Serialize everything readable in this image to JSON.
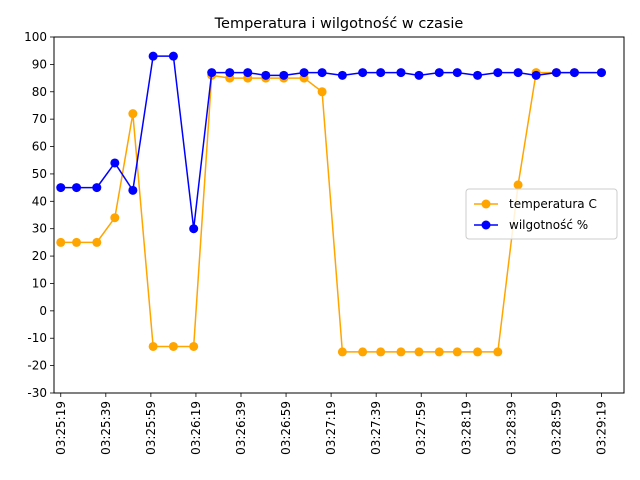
{
  "chart_data": {
    "type": "line",
    "title": "Temperatura i wilgotność w czasie",
    "xlabel": "",
    "ylabel": "",
    "ylim": [
      -30,
      100
    ],
    "yticks": [
      -30,
      -20,
      -10,
      0,
      10,
      20,
      30,
      40,
      50,
      60,
      70,
      80,
      90,
      100
    ],
    "xlim_seconds": [
      "03:25:16",
      "03:29:29"
    ],
    "xticks": [
      "03:25:19",
      "03:25:39",
      "03:25:59",
      "03:26:19",
      "03:26:39",
      "03:26:59",
      "03:27:19",
      "03:27:39",
      "03:27:59",
      "03:28:19",
      "03:28:39",
      "03:28:59",
      "03:29:19"
    ],
    "x_label_rotation": 90,
    "grid": false,
    "legend_position": "center-right",
    "series": [
      {
        "name": "temperatura C",
        "color": "#FFA500",
        "marker": "circle",
        "points": [
          [
            "03:25:19",
            25
          ],
          [
            "03:25:26",
            25
          ],
          [
            "03:25:35",
            25
          ],
          [
            "03:25:43",
            34
          ],
          [
            "03:25:51",
            72
          ],
          [
            "03:26:00",
            -13
          ],
          [
            "03:26:09",
            -13
          ],
          [
            "03:26:18",
            -13
          ],
          [
            "03:26:26",
            86
          ],
          [
            "03:26:34",
            85
          ],
          [
            "03:26:42",
            85
          ],
          [
            "03:26:50",
            85
          ],
          [
            "03:26:58",
            85
          ],
          [
            "03:27:07",
            85
          ],
          [
            "03:27:15",
            80
          ],
          [
            "03:27:24",
            -15
          ],
          [
            "03:27:33",
            -15
          ],
          [
            "03:27:41",
            -15
          ],
          [
            "03:27:50",
            -15
          ],
          [
            "03:27:58",
            -15
          ],
          [
            "03:28:07",
            -15
          ],
          [
            "03:28:15",
            -15
          ],
          [
            "03:28:24",
            -15
          ],
          [
            "03:28:33",
            -15
          ],
          [
            "03:28:42",
            46
          ],
          [
            "03:28:50",
            87
          ],
          [
            "03:28:59",
            87
          ],
          [
            "03:29:07",
            87
          ],
          [
            "03:29:19",
            87
          ]
        ]
      },
      {
        "name": "wilgotność %",
        "color": "#0000FF",
        "marker": "circle",
        "points": [
          [
            "03:25:19",
            45
          ],
          [
            "03:25:26",
            45
          ],
          [
            "03:25:35",
            45
          ],
          [
            "03:25:43",
            54
          ],
          [
            "03:25:51",
            44
          ],
          [
            "03:26:00",
            93
          ],
          [
            "03:26:09",
            93
          ],
          [
            "03:26:18",
            30
          ],
          [
            "03:26:26",
            87
          ],
          [
            "03:26:34",
            87
          ],
          [
            "03:26:42",
            87
          ],
          [
            "03:26:50",
            86
          ],
          [
            "03:26:58",
            86
          ],
          [
            "03:27:07",
            87
          ],
          [
            "03:27:15",
            87
          ],
          [
            "03:27:24",
            86
          ],
          [
            "03:27:33",
            87
          ],
          [
            "03:27:41",
            87
          ],
          [
            "03:27:50",
            87
          ],
          [
            "03:27:58",
            86
          ],
          [
            "03:28:07",
            87
          ],
          [
            "03:28:15",
            87
          ],
          [
            "03:28:24",
            86
          ],
          [
            "03:28:33",
            87
          ],
          [
            "03:28:42",
            87
          ],
          [
            "03:28:50",
            86
          ],
          [
            "03:28:59",
            87
          ],
          [
            "03:29:07",
            87
          ],
          [
            "03:29:19",
            87
          ]
        ]
      }
    ]
  }
}
